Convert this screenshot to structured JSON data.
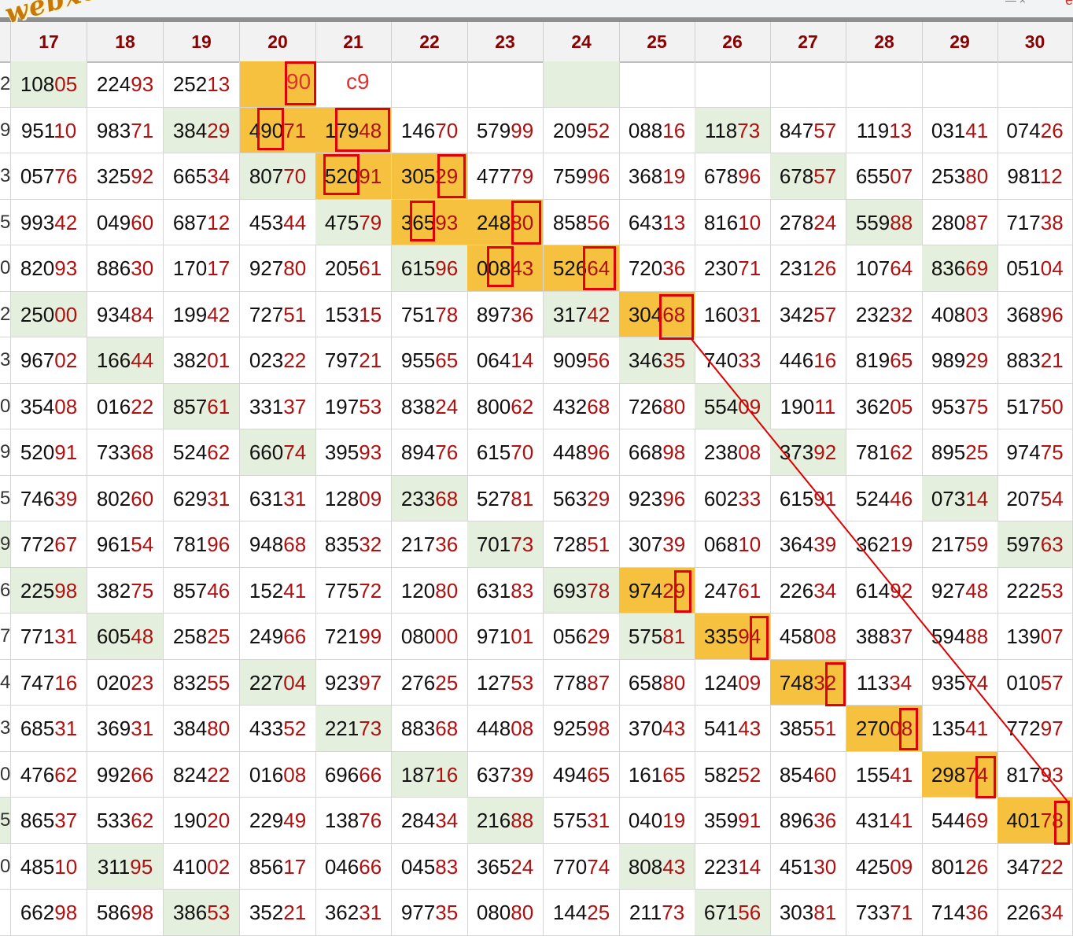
{
  "browser": {
    "controls": "— ×",
    "edge_mark": "e"
  },
  "watermark": "webxoso.net",
  "columns": [
    "17",
    "18",
    "19",
    "20",
    "21",
    "22",
    "23",
    "24",
    "25",
    "26",
    "27",
    "28",
    "29",
    "30"
  ],
  "row_edge_digits": [
    "2",
    "9",
    "3",
    "5",
    "0",
    "2",
    "3",
    "0",
    "9",
    "5",
    "9",
    "6",
    "7",
    "4",
    "3",
    "0",
    "5",
    "0",
    ""
  ],
  "rows": [
    [
      "10805",
      "22493",
      "25213",
      "",
      "",
      "",
      "",
      "",
      "",
      "",
      "",
      "",
      "",
      ""
    ],
    [
      "95110",
      "98371",
      "38429",
      "49071",
      "17948",
      "14670",
      "57999",
      "20952",
      "08816",
      "11873",
      "84757",
      "11913",
      "03141",
      "07426"
    ],
    [
      "05776",
      "32592",
      "66534",
      "80770",
      "52091",
      "30529",
      "47779",
      "75996",
      "36819",
      "67896",
      "67857",
      "65507",
      "25380",
      "98112"
    ],
    [
      "99342",
      "04960",
      "68712",
      "45344",
      "47579",
      "36593",
      "24880",
      "85856",
      "64313",
      "81610",
      "27824",
      "55988",
      "28087",
      "71738"
    ],
    [
      "82093",
      "88630",
      "17017",
      "92780",
      "20561",
      "61596",
      "00843",
      "52664",
      "72036",
      "23071",
      "23126",
      "10764",
      "83669",
      "05104"
    ],
    [
      "25000",
      "93484",
      "19942",
      "72751",
      "15315",
      "75178",
      "89736",
      "31742",
      "30468",
      "16031",
      "34257",
      "23232",
      "40803",
      "36896"
    ],
    [
      "96702",
      "16644",
      "38201",
      "02322",
      "79721",
      "95565",
      "06414",
      "90956",
      "34635",
      "74033",
      "44616",
      "81965",
      "98929",
      "88321"
    ],
    [
      "35408",
      "01622",
      "85761",
      "33137",
      "19753",
      "83824",
      "80062",
      "43268",
      "72680",
      "55409",
      "19011",
      "36205",
      "95375",
      "51750"
    ],
    [
      "52091",
      "73368",
      "52462",
      "66074",
      "39593",
      "89476",
      "61570",
      "44896",
      "66898",
      "23808",
      "37392",
      "78162",
      "89525",
      "97475"
    ],
    [
      "74639",
      "80260",
      "62931",
      "63131",
      "12809",
      "23368",
      "52781",
      "56329",
      "92396",
      "60233",
      "61591",
      "52446",
      "07314",
      "20754"
    ],
    [
      "77267",
      "96154",
      "78196",
      "94868",
      "83532",
      "21736",
      "70173",
      "72851",
      "30739",
      "06810",
      "36439",
      "36219",
      "21759",
      "59763"
    ],
    [
      "22598",
      "38275",
      "85746",
      "15241",
      "77572",
      "12080",
      "63183",
      "69378",
      "97429",
      "24761",
      "22634",
      "61492",
      "92748",
      "22253"
    ],
    [
      "77131",
      "60548",
      "25825",
      "24966",
      "72199",
      "08000",
      "97101",
      "05629",
      "57581",
      "33594",
      "45808",
      "38837",
      "59488",
      "13907"
    ],
    [
      "74716",
      "02023",
      "83255",
      "22704",
      "92397",
      "27625",
      "12753",
      "77887",
      "65880",
      "12409",
      "74832",
      "11334",
      "93574",
      "01057"
    ],
    [
      "68531",
      "36931",
      "38480",
      "43352",
      "22173",
      "88368",
      "44808",
      "92598",
      "37043",
      "54143",
      "38551",
      "27008",
      "13541",
      "77297"
    ],
    [
      "47662",
      "99266",
      "82422",
      "01608",
      "69666",
      "18716",
      "63739",
      "49465",
      "16165",
      "58252",
      "85460",
      "15541",
      "29874",
      "81793"
    ],
    [
      "86537",
      "53362",
      "19020",
      "22949",
      "13876",
      "28434",
      "21688",
      "57531",
      "04019",
      "35991",
      "89636",
      "43141",
      "54469",
      "40178"
    ],
    [
      "48510",
      "31195",
      "41002",
      "85617",
      "04666",
      "04583",
      "36524",
      "77074",
      "80843",
      "22314",
      "45130",
      "42509",
      "80126",
      "34722"
    ],
    [
      "66298",
      "58698",
      "38653",
      "35221",
      "36231",
      "97735",
      "08080",
      "14425",
      "21173",
      "67156",
      "30381",
      "73371",
      "71436",
      "22634"
    ]
  ],
  "annotations": {
    "pair_value": "90",
    "label": "c9"
  },
  "colors": {
    "header_text": "#8b0000",
    "suffix_text": "#b01010",
    "green": "#e4efdd",
    "gold": "#f5c13e",
    "marker": "#e00000"
  }
}
